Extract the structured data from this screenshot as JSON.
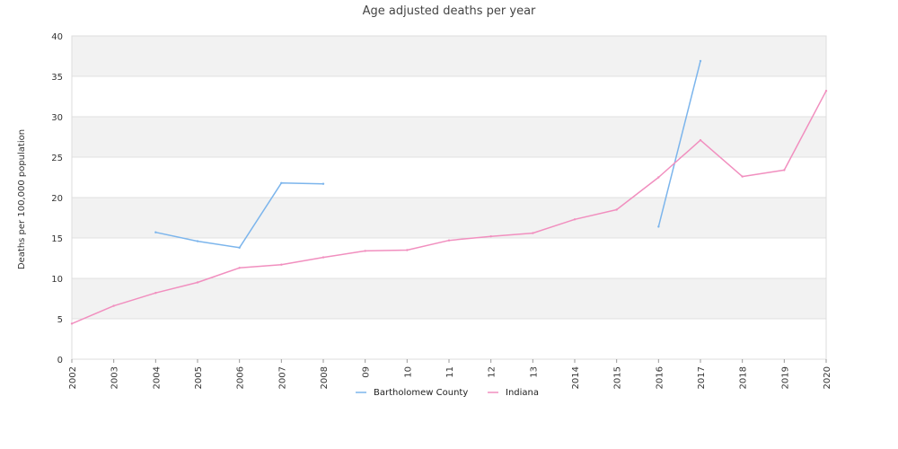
{
  "chart_data": {
    "type": "line",
    "title": "Age adjusted deaths per year",
    "xlabel": "",
    "ylabel": "Deaths per 100,000 population",
    "ylim": [
      0,
      40
    ],
    "yticks": [
      0,
      5,
      10,
      15,
      20,
      25,
      30,
      35,
      40
    ],
    "categories": [
      "2002",
      "2003",
      "2004",
      "2005",
      "2006",
      "2007",
      "2008",
      "09",
      "10",
      "11",
      "12",
      "13",
      "2014",
      "2015",
      "2016",
      "2017",
      "2018",
      "2019",
      "2020"
    ],
    "grid": "horizontal alternating bands",
    "legend_position": "bottom",
    "series": [
      {
        "name": "Bartholomew County",
        "color": "#7cb5ec",
        "values": [
          null,
          null,
          15.7,
          14.6,
          13.8,
          21.8,
          21.7,
          null,
          null,
          null,
          null,
          null,
          null,
          null,
          16.4,
          36.9,
          null,
          null,
          null
        ]
      },
      {
        "name": "Indiana",
        "color": "#f18fbf",
        "values": [
          4.4,
          6.6,
          8.2,
          9.5,
          11.3,
          11.7,
          12.6,
          13.4,
          13.5,
          14.7,
          15.2,
          15.6,
          17.3,
          18.5,
          22.5,
          27.1,
          22.6,
          23.4,
          33.2
        ]
      }
    ]
  }
}
